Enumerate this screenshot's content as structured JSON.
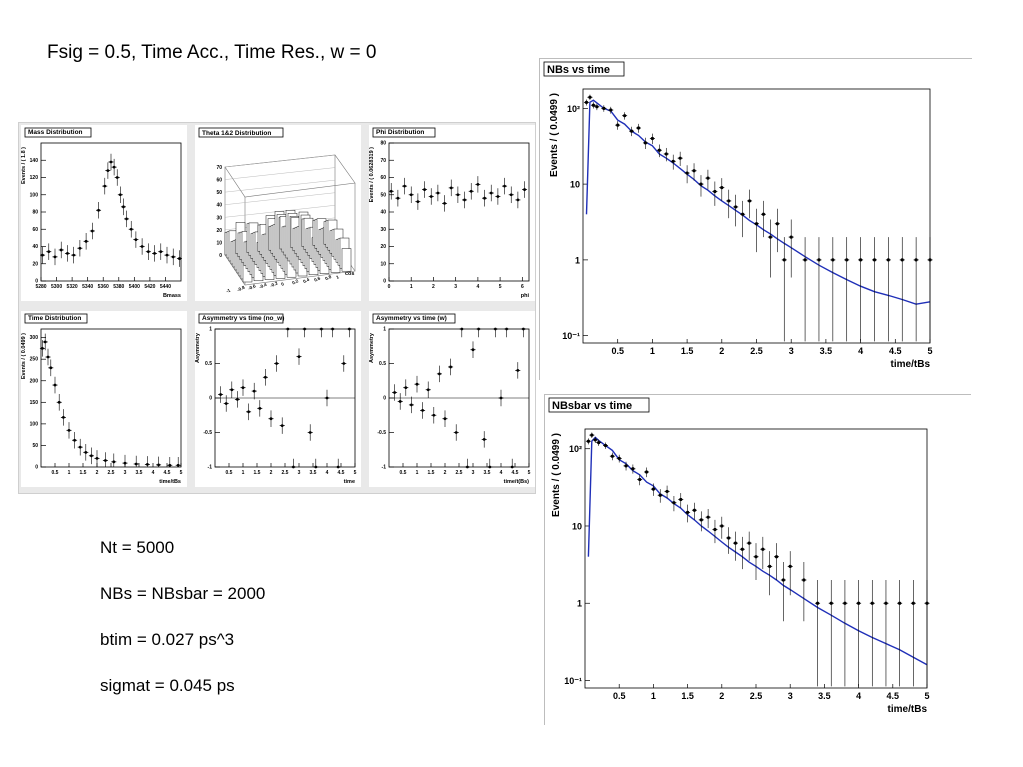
{
  "slide_title": "Fsig = 0.5, Time Acc., Time Res., w = 0",
  "params": [
    "Nt = 5000",
    "NBs = NBsbar = 2000",
    "btim = 0.027 ps^3",
    "sigmat = 0.045 ps"
  ],
  "chart_data": [
    {
      "type": "scatter",
      "title": "Mass Distribution",
      "xlabel": "Bmass",
      "ylabel": "Events / ( 1.8 )",
      "xlim": [
        5280,
        5460
      ],
      "ylim": [
        0,
        160
      ],
      "x_ticks": [
        "5280",
        "5300",
        "5320",
        "5340",
        "5360",
        "5380",
        "5400",
        "5420",
        "5440"
      ],
      "y_ticks": [
        "0",
        "20",
        "40",
        "60",
        "80",
        "100",
        "120",
        "140"
      ],
      "x": [
        5282,
        5290,
        5298,
        5306,
        5314,
        5322,
        5330,
        5338,
        5346,
        5354,
        5362,
        5366,
        5370,
        5374,
        5378,
        5382,
        5386,
        5390,
        5396,
        5402,
        5410,
        5418,
        5426,
        5434,
        5442,
        5450,
        5458
      ],
      "y": [
        30,
        34,
        28,
        36,
        32,
        30,
        38,
        46,
        58,
        82,
        110,
        128,
        138,
        132,
        120,
        100,
        86,
        72,
        60,
        48,
        40,
        34,
        32,
        34,
        30,
        28,
        26
      ]
    },
    {
      "type": "bar3d",
      "title": "Theta 1&2 Distribution",
      "zlim": [
        0,
        70
      ],
      "z_ticks": [
        "0",
        "10",
        "20",
        "30",
        "40",
        "50",
        "60",
        "70"
      ],
      "axis_label": "cos",
      "tick_labels": [
        "-1",
        "-0.8",
        "-0.6",
        "-0.4",
        "-0.2",
        "0",
        "0.2",
        "0.4",
        "0.6",
        "0.8",
        "1"
      ]
    },
    {
      "type": "scatter",
      "title": "Phi Distribution",
      "xlabel": "phi",
      "ylabel": "Events / ( 0.0628319 )",
      "xlim": [
        0,
        6.3
      ],
      "ylim": [
        0,
        80
      ],
      "x_ticks": [
        "0",
        "1",
        "2",
        "3",
        "4",
        "5",
        "6"
      ],
      "y_ticks": [
        "0",
        "10",
        "20",
        "30",
        "40",
        "50",
        "60",
        "70",
        "80"
      ],
      "x": [
        0.1,
        0.4,
        0.7,
        1.0,
        1.3,
        1.6,
        1.9,
        2.2,
        2.5,
        2.8,
        3.1,
        3.4,
        3.7,
        4.0,
        4.3,
        4.6,
        4.9,
        5.2,
        5.5,
        5.8,
        6.1
      ],
      "y": [
        52,
        48,
        55,
        50,
        46,
        53,
        49,
        51,
        45,
        54,
        50,
        47,
        52,
        56,
        48,
        51,
        49,
        55,
        50,
        47,
        53
      ]
    },
    {
      "type": "scatter",
      "title": "Time Distribution",
      "xlabel": "time/tBs",
      "ylabel": "Events / ( 0.0499 )",
      "xlim": [
        0,
        5
      ],
      "ylim": [
        0,
        320
      ],
      "x_ticks": [
        "0.5",
        "1",
        "1.5",
        "2",
        "2.5",
        "3",
        "3.5",
        "4",
        "4.5",
        "5"
      ],
      "y_ticks": [
        "0",
        "50",
        "100",
        "150",
        "200",
        "250",
        "300"
      ],
      "x": [
        0.05,
        0.15,
        0.25,
        0.35,
        0.5,
        0.65,
        0.8,
        1.0,
        1.2,
        1.4,
        1.6,
        1.8,
        2.0,
        2.3,
        2.6,
        3.0,
        3.4,
        3.8,
        4.2,
        4.6,
        4.9
      ],
      "y": [
        275,
        290,
        255,
        230,
        190,
        150,
        115,
        85,
        62,
        46,
        34,
        26,
        20,
        15,
        12,
        9,
        7,
        6,
        5,
        4,
        4
      ]
    },
    {
      "type": "scatter",
      "title": "Asymmetry vs time (no_w)",
      "xlabel": "time",
      "ylabel": "Asymmetry",
      "xlim": [
        0,
        5
      ],
      "ylim": [
        -1,
        1
      ],
      "x_ticks": [
        "0.5",
        "1",
        "1.5",
        "2",
        "2.5",
        "3",
        "3.5",
        "4",
        "4.5",
        "5"
      ],
      "y_ticks": [
        "-1",
        "-0.5",
        "0",
        "0.5",
        "1"
      ],
      "x": [
        0.2,
        0.4,
        0.6,
        0.8,
        1.0,
        1.2,
        1.4,
        1.6,
        1.8,
        2.0,
        2.2,
        2.4,
        2.6,
        2.8,
        3.0,
        3.2,
        3.4,
        3.6,
        3.8,
        4.0,
        4.2,
        4.4,
        4.6,
        4.8
      ],
      "y": [
        0.05,
        -0.08,
        0.12,
        -0.02,
        0.15,
        -0.2,
        0.1,
        -0.15,
        0.3,
        -0.3,
        0.5,
        -0.4,
        1.0,
        -1.0,
        0.6,
        1.0,
        -0.5,
        -1.0,
        1.0,
        0.0,
        1.0,
        -1.0,
        0.5,
        1.0
      ]
    },
    {
      "type": "scatter",
      "title": "Asymmetry vs time (w)",
      "xlabel": "time/t(Bs)",
      "ylabel": "Asymmetry",
      "xlim": [
        0,
        5
      ],
      "ylim": [
        -1,
        1
      ],
      "x_ticks": [
        "0.5",
        "1",
        "1.5",
        "2",
        "2.5",
        "3",
        "3.5",
        "4",
        "4.5",
        "5"
      ],
      "y_ticks": [
        "-1",
        "-0.5",
        "0",
        "0.5",
        "1"
      ],
      "x": [
        0.2,
        0.4,
        0.6,
        0.8,
        1.0,
        1.2,
        1.4,
        1.6,
        1.8,
        2.0,
        2.2,
        2.4,
        2.6,
        2.8,
        3.0,
        3.2,
        3.4,
        3.6,
        3.8,
        4.0,
        4.2,
        4.4,
        4.6,
        4.8
      ],
      "y": [
        0.08,
        -0.05,
        0.15,
        -0.1,
        0.2,
        -0.18,
        0.12,
        -0.25,
        0.35,
        -0.3,
        0.45,
        -0.5,
        1.0,
        -1.0,
        0.7,
        1.0,
        -0.6,
        -1.0,
        1.0,
        0.0,
        1.0,
        -1.0,
        0.4,
        1.0
      ]
    },
    {
      "type": "line",
      "title": "NBs vs time",
      "xlabel": "time/tBs",
      "ylabel": "Events / ( 0.0499 )",
      "yscale": "log",
      "xlim": [
        0,
        5
      ],
      "ylim": [
        0.08,
        180
      ],
      "x_ticks": [
        "0.5",
        "1",
        "1.5",
        "2",
        "2.5",
        "3",
        "3.5",
        "4",
        "4.5",
        "5"
      ],
      "y_ticks": [
        "10⁻¹",
        "1",
        "10",
        "10²"
      ],
      "x": [
        0.05,
        0.1,
        0.15,
        0.2,
        0.3,
        0.4,
        0.5,
        0.6,
        0.7,
        0.8,
        0.9,
        1.0,
        1.1,
        1.2,
        1.3,
        1.4,
        1.5,
        1.6,
        1.7,
        1.8,
        1.9,
        2.0,
        2.1,
        2.2,
        2.3,
        2.4,
        2.5,
        2.6,
        2.7,
        2.8,
        2.9,
        3.0,
        3.2,
        3.4,
        3.6,
        3.8,
        4.0,
        4.2,
        4.4,
        4.6,
        4.8,
        5.0
      ],
      "y": [
        120,
        140,
        110,
        105,
        100,
        95,
        60,
        80,
        50,
        55,
        35,
        40,
        28,
        25,
        20,
        22,
        14,
        15,
        10,
        12,
        8,
        9,
        6,
        5,
        4,
        6,
        3,
        4,
        2,
        3,
        1,
        2,
        1,
        1,
        1,
        1,
        1,
        1,
        1,
        1,
        1,
        1
      ],
      "fit_y": [
        4,
        120,
        128,
        118,
        100,
        92,
        70,
        62,
        50,
        44,
        36,
        32,
        25,
        22,
        19,
        16,
        13.5,
        11.5,
        9.5,
        8.3,
        7,
        6,
        5.2,
        4.5,
        3.9,
        3.3,
        2.9,
        2.5,
        2.2,
        1.9,
        1.65,
        1.45,
        1.1,
        0.85,
        0.68,
        0.55,
        0.45,
        0.38,
        0.34,
        0.3,
        0.26,
        0.28
      ]
    },
    {
      "type": "line",
      "title": "NBsbar vs time",
      "xlabel": "time/tBs",
      "ylabel": "Events / ( 0.0499 )",
      "yscale": "log",
      "xlim": [
        0,
        5
      ],
      "ylim": [
        0.08,
        180
      ],
      "x_ticks": [
        "0.5",
        "1",
        "1.5",
        "2",
        "2.5",
        "3",
        "3.5",
        "4",
        "4.5",
        "5"
      ],
      "y_ticks": [
        "10⁻¹",
        "1",
        "10",
        "10²"
      ],
      "x": [
        0.05,
        0.1,
        0.15,
        0.2,
        0.3,
        0.4,
        0.5,
        0.6,
        0.7,
        0.8,
        0.9,
        1.0,
        1.1,
        1.2,
        1.3,
        1.4,
        1.5,
        1.6,
        1.7,
        1.8,
        1.9,
        2.0,
        2.1,
        2.2,
        2.3,
        2.4,
        2.5,
        2.6,
        2.7,
        2.8,
        2.9,
        3.0,
        3.2,
        3.4,
        3.6,
        3.8,
        4.0,
        4.2,
        4.4,
        4.6,
        4.8,
        5.0
      ],
      "y": [
        125,
        150,
        130,
        120,
        110,
        80,
        75,
        60,
        55,
        40,
        50,
        30,
        25,
        28,
        20,
        22,
        15,
        16,
        12,
        13,
        9,
        10,
        7,
        6,
        5,
        6,
        4,
        5,
        3,
        4,
        2,
        3,
        2,
        1,
        1,
        1,
        1,
        1,
        1,
        1,
        1,
        1
      ],
      "fit_y": [
        4,
        125,
        140,
        128,
        110,
        95,
        72,
        64,
        52,
        46,
        37,
        33,
        26,
        23,
        19.5,
        17,
        14,
        12,
        10,
        8.6,
        7.3,
        6.2,
        5.3,
        4.6,
        4,
        3.4,
        3,
        2.6,
        2.3,
        2,
        1.7,
        1.5,
        1.15,
        0.88,
        0.7,
        0.55,
        0.44,
        0.36,
        0.3,
        0.25,
        0.2,
        0.16
      ]
    }
  ]
}
